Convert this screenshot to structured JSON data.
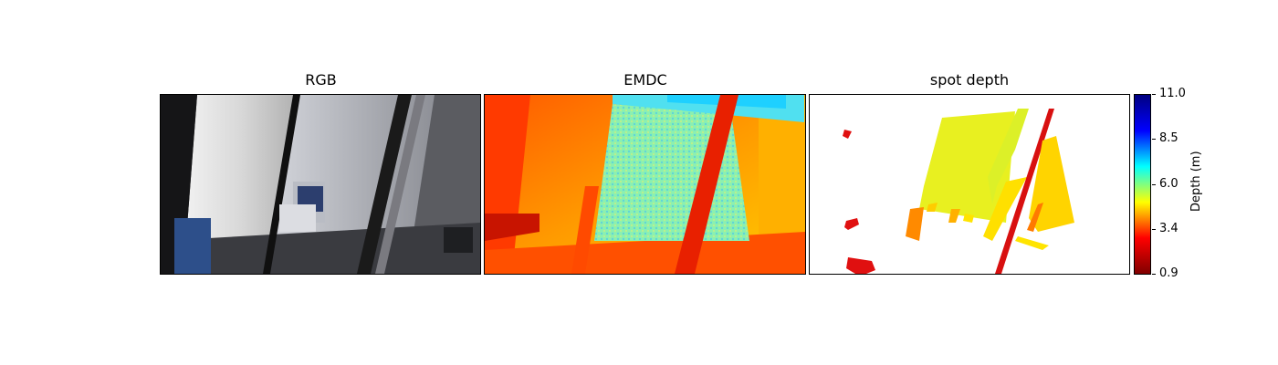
{
  "panels": [
    {
      "title": "RGB"
    },
    {
      "title": "EMDC"
    },
    {
      "title": "spot depth"
    }
  ],
  "colorbar": {
    "label": "Depth (m)",
    "min": 0.9,
    "max": 11.0,
    "ticks": [
      "11.0",
      "8.5",
      "6.0",
      "3.4",
      "0.9"
    ],
    "colormap": "jet-reversed",
    "colors": [
      "#800000",
      "#ff0000",
      "#ffff00",
      "#00ffff",
      "#0000ff",
      "#000080"
    ]
  }
}
